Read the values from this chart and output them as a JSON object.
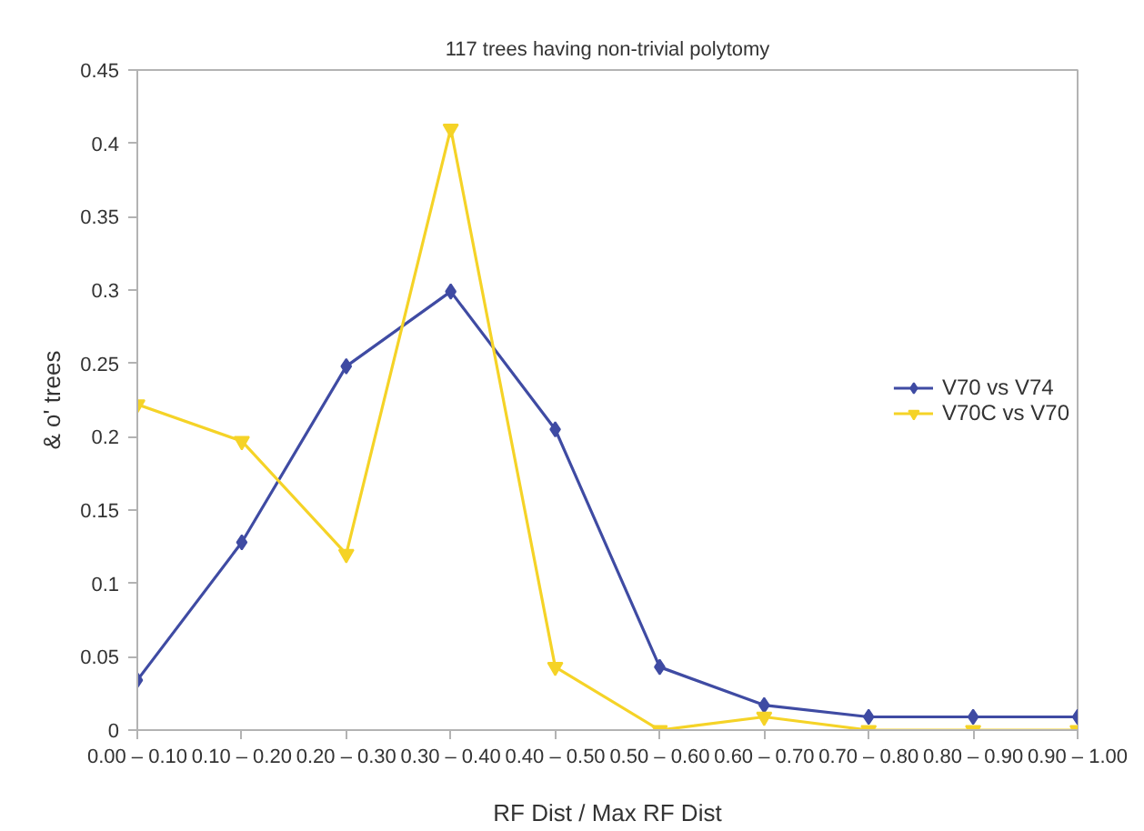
{
  "chart_data": {
    "type": "line",
    "title": "117 trees having non-trivial polytomy",
    "xlabel": "RF Dist / Max RF Dist",
    "ylabel": "& o' trees",
    "categories": [
      "0.00 – 0.10",
      "0.10 – 0.20",
      "0.20 – 0.30",
      "0.30 – 0.40",
      "0.40 – 0.50",
      "0.50 – 0.60",
      "0.60 – 0.70",
      "0.70 – 0.80",
      "0.80 – 0.90",
      "0.90 – 1.00"
    ],
    "series": [
      {
        "name": "V70 vs V74",
        "color": "#3f4ba3",
        "marker": "diamond",
        "values": [
          0.034,
          0.128,
          0.248,
          0.299,
          0.205,
          0.043,
          0.017,
          0.009,
          0.009,
          0.009
        ]
      },
      {
        "name": "V70C vs V70",
        "color": "#f5d327",
        "marker": "triangle",
        "values": [
          0.222,
          0.197,
          0.12,
          0.41,
          0.043,
          0.0,
          0.009,
          0.0,
          0.0,
          0.0
        ]
      }
    ],
    "ylim": [
      0,
      0.45
    ],
    "yticks": [
      0,
      0.05,
      0.1,
      0.15,
      0.2,
      0.25,
      0.3,
      0.35,
      0.4,
      0.45
    ],
    "grid": false,
    "legend": "right",
    "line_style": "solid"
  }
}
